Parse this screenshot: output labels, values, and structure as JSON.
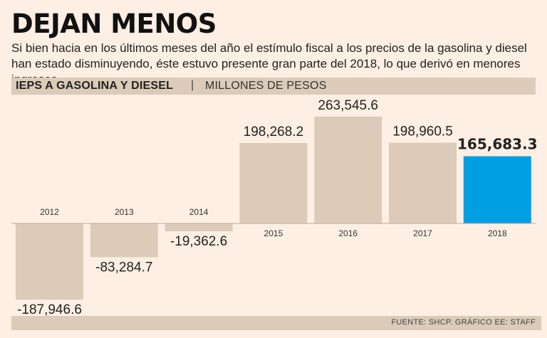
{
  "header": {
    "title": "DEJAN MENOS",
    "subtitle": "Si bien hacia en los últimos meses del año el estímulo fiscal a los precios de la gasolina y diesel han estado disminuyendo, éste estuvo presente gran parte del 2018, lo que derivó en menores ingresos.",
    "band_label": "IEPS A GASOLINA Y DIESEL",
    "band_sep": "|",
    "band_unit": "MILLONES DE PESOS"
  },
  "colors": {
    "bar": "#dccbb9",
    "highlight": "#009fe3",
    "background": "#fdefe3",
    "zero_line": "#bcaa98"
  },
  "chart_data": {
    "type": "bar",
    "title": "IEPS A GASOLINA Y DIESEL",
    "ylabel": "MILLONES DE PESOS",
    "categories": [
      "2012",
      "2013",
      "2014",
      "2015",
      "2016",
      "2017",
      "2018"
    ],
    "values": [
      -187946.6,
      -83284.7,
      -19362.6,
      198268.2,
      263545.6,
      198960.5,
      165683.3
    ],
    "value_labels": [
      "-187,946.6",
      "-83,284.7",
      "-19,362.6",
      "198,268.2",
      "263,545.6",
      "198,960.5",
      "165,683.3"
    ],
    "highlight_index": 6,
    "grid": false,
    "legend": "none"
  },
  "footer": {
    "source": "FUENTE: SHCP. GRÁFICO EE: STAFF"
  }
}
